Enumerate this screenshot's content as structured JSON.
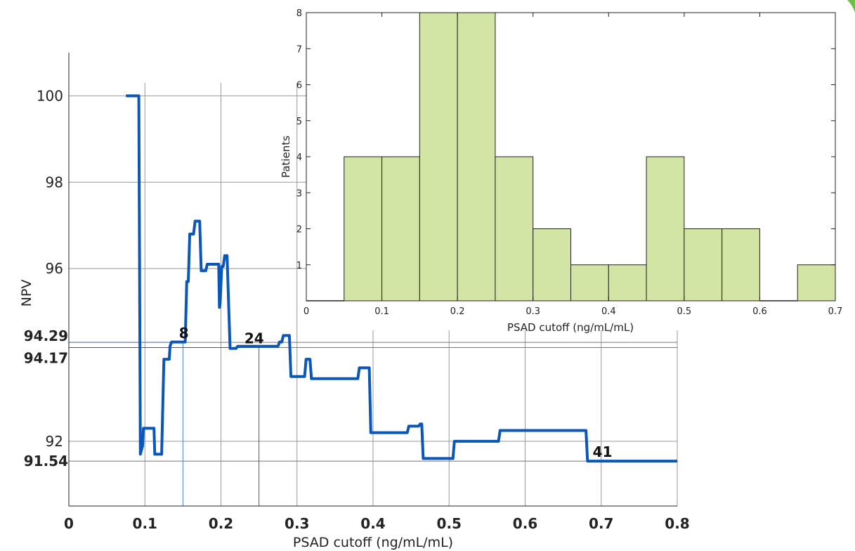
{
  "chart_data": [
    {
      "type": "line",
      "xlabel": "PSAD cutoff (ng/mL/mL)",
      "ylabel": "NPV",
      "xlim": [
        0,
        0.8
      ],
      "ylim": [
        90.5,
        101
      ],
      "xticks": [
        "0",
        "0.1",
        "0.2",
        "0.3",
        "0.4",
        "0.5",
        "0.6",
        "0.7",
        "0.8"
      ],
      "yticks": [
        "100",
        "98",
        "96",
        "92"
      ],
      "highlight_yticks": [
        "94.29",
        "94.17",
        "91.54"
      ],
      "series": [
        {
          "color": "#0b57b7",
          "points": [
            [
              0.075,
              100
            ],
            [
              0.092,
              100
            ],
            [
              0.094,
              91.7
            ],
            [
              0.097,
              91.9
            ],
            [
              0.098,
              92.3
            ],
            [
              0.112,
              92.3
            ],
            [
              0.113,
              91.7
            ],
            [
              0.122,
              91.7
            ],
            [
              0.125,
              93.9
            ],
            [
              0.132,
              93.9
            ],
            [
              0.133,
              94.2
            ],
            [
              0.135,
              94.3
            ],
            [
              0.15,
              94.3
            ],
            [
              0.153,
              94.3
            ],
            [
              0.155,
              95.7
            ],
            [
              0.157,
              95.7
            ],
            [
              0.159,
              96.8
            ],
            [
              0.164,
              96.8
            ],
            [
              0.166,
              97.1
            ],
            [
              0.172,
              97.1
            ],
            [
              0.174,
              95.95
            ],
            [
              0.18,
              95.95
            ],
            [
              0.182,
              96.1
            ],
            [
              0.197,
              96.1
            ],
            [
              0.198,
              95.1
            ],
            [
              0.199,
              95.2
            ],
            [
              0.201,
              96.05
            ],
            [
              0.203,
              96.05
            ],
            [
              0.205,
              96.3
            ],
            [
              0.208,
              96.3
            ],
            [
              0.212,
              94.15
            ],
            [
              0.22,
              94.15
            ],
            [
              0.222,
              94.2
            ],
            [
              0.275,
              94.2
            ],
            [
              0.277,
              94.3
            ],
            [
              0.28,
              94.3
            ],
            [
              0.282,
              94.45
            ],
            [
              0.29,
              94.45
            ],
            [
              0.292,
              93.5
            ],
            [
              0.31,
              93.5
            ],
            [
              0.312,
              93.9
            ],
            [
              0.317,
              93.9
            ],
            [
              0.319,
              93.45
            ],
            [
              0.38,
              93.45
            ],
            [
              0.382,
              93.7
            ],
            [
              0.395,
              93.7
            ],
            [
              0.397,
              92.2
            ],
            [
              0.445,
              92.2
            ],
            [
              0.447,
              92.35
            ],
            [
              0.46,
              92.35
            ],
            [
              0.462,
              92.4
            ],
            [
              0.464,
              92.4
            ],
            [
              0.466,
              91.6
            ],
            [
              0.505,
              91.6
            ],
            [
              0.507,
              92.0
            ],
            [
              0.565,
              92.0
            ],
            [
              0.567,
              92.25
            ],
            [
              0.68,
              92.25
            ],
            [
              0.682,
              91.54
            ],
            [
              0.8,
              91.54
            ]
          ]
        }
      ],
      "reference_lines": [
        {
          "x": 0.15,
          "y": 94.29,
          "color": "#4a7fd0"
        },
        {
          "x": 0.25,
          "y": 94.17,
          "color": "#555555"
        }
      ],
      "annotations": [
        {
          "text": "8",
          "x": 0.143,
          "y": 94.29
        },
        {
          "text": "24",
          "x": 0.229,
          "y": 94.17
        },
        {
          "text": "41",
          "x": 0.687,
          "y": 91.54
        }
      ],
      "grid": "on"
    },
    {
      "type": "bar",
      "xlabel": "PSAD cutoff (ng/mL/mL)",
      "ylabel": "Patients",
      "xlim": [
        0,
        0.7
      ],
      "ylim": [
        0,
        8
      ],
      "xticks": [
        "0",
        "0.1",
        "0.2",
        "0.3",
        "0.4",
        "0.5",
        "0.6",
        "0.7"
      ],
      "yticks": [
        "1",
        "2",
        "3",
        "4",
        "5",
        "6",
        "7",
        "8"
      ],
      "bin_edges": [
        0.0,
        0.05,
        0.1,
        0.15,
        0.2,
        0.25,
        0.3,
        0.35,
        0.4,
        0.45,
        0.5,
        0.55,
        0.6,
        0.65,
        0.7
      ],
      "values": [
        0,
        4,
        4,
        8,
        8,
        4,
        2,
        1,
        1,
        4,
        2,
        2,
        0,
        1
      ],
      "bar_color": "#d2e5a4",
      "edge_color": "#222222",
      "grid": "off"
    }
  ]
}
